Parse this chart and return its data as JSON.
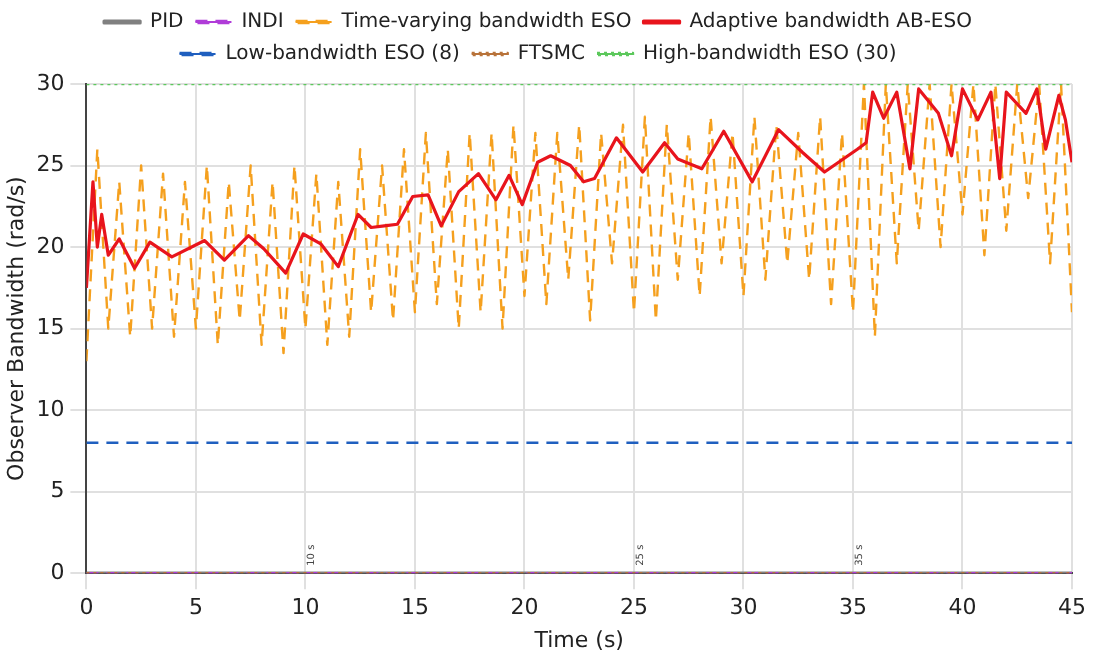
{
  "chart_data": {
    "type": "line",
    "xlabel": "Time (s)",
    "ylabel": "Observer Bandwidth (rad/s)",
    "xlim": [
      0,
      45
    ],
    "ylim": [
      0,
      30
    ],
    "xticks": [
      0,
      5,
      10,
      15,
      20,
      25,
      30,
      35,
      40,
      45
    ],
    "yticks": [
      0,
      5,
      10,
      15,
      20,
      25,
      30
    ],
    "grid": true,
    "legend": "top",
    "marker": "none",
    "annotations": [
      "10 s",
      "25 s",
      "35 s"
    ],
    "series": [
      {
        "name": "PID",
        "color": "#808080",
        "line_style": "solid",
        "x": [
          0,
          45
        ],
        "values": [
          0,
          0
        ]
      },
      {
        "name": "INDI",
        "color": "#b03cd8",
        "line_style": "dashed",
        "x": [
          0,
          45
        ],
        "values": [
          0,
          0
        ]
      },
      {
        "name": "Time-varying bandwidth ESO",
        "color": "#f5a01e",
        "line_style": "dashed",
        "x": [
          0,
          0.5,
          1,
          1.5,
          2,
          2.5,
          3,
          3.5,
          4,
          4.5,
          5,
          5.5,
          6,
          6.5,
          7,
          7.5,
          8,
          8.5,
          9,
          9.5,
          10,
          10.5,
          11,
          11.5,
          12,
          12.5,
          13,
          13.5,
          14,
          14.5,
          15,
          15.5,
          16,
          16.5,
          17,
          17.5,
          18,
          18.5,
          19,
          19.5,
          20,
          20.5,
          21,
          21.5,
          22,
          22.5,
          23,
          23.5,
          24,
          24.5,
          25,
          25.5,
          26,
          26.5,
          27,
          27.5,
          28,
          28.5,
          29,
          29.5,
          30,
          30.5,
          31,
          31.5,
          32,
          32.5,
          33,
          33.5,
          34,
          34.5,
          35,
          35.5,
          36,
          36.5,
          37,
          37.5,
          38,
          38.5,
          39,
          39.5,
          40,
          40.5,
          41,
          41.5,
          42,
          42.5,
          43,
          43.5,
          44,
          44.5,
          45
        ],
        "values": [
          13,
          26,
          15,
          24,
          14.5,
          25,
          15,
          24.5,
          14.5,
          24,
          15,
          25,
          14,
          24,
          15.5,
          25,
          14,
          24,
          13.5,
          25,
          15,
          24.5,
          14,
          24,
          14.5,
          26,
          16,
          25,
          15.5,
          26,
          16,
          27,
          16.5,
          26,
          15,
          27,
          16,
          27,
          15,
          27.5,
          17,
          27,
          16.5,
          27,
          18,
          27.5,
          15.5,
          27,
          19,
          27.5,
          16,
          28,
          15.5,
          27.5,
          18,
          27,
          17,
          28,
          19,
          27,
          17,
          28,
          18,
          27.5,
          19,
          27,
          18,
          28,
          16.5,
          27,
          16,
          30,
          14.5,
          30,
          19,
          30,
          21,
          30,
          20,
          30,
          22,
          30,
          19.5,
          30,
          21,
          30,
          23,
          30,
          19,
          30,
          16
        ]
      },
      {
        "name": "Adaptive bandwidth AB-ESO",
        "color": "#e8141c",
        "line_style": "solid",
        "x": [
          0,
          0.3,
          0.5,
          0.7,
          1,
          1.5,
          2.2,
          2.9,
          3.9,
          5.4,
          6.3,
          7.4,
          8.1,
          9.1,
          9.9,
          10.7,
          11.5,
          12.4,
          13,
          13.6,
          14.2,
          14.9,
          15.6,
          16.2,
          17,
          17.9,
          18.7,
          19.3,
          19.9,
          20.6,
          21.2,
          22.1,
          22.7,
          23.2,
          24.2,
          25.4,
          26.4,
          27,
          28.1,
          29.1,
          30.4,
          31.6,
          32.7,
          33.7,
          35.2,
          35.6,
          35.9,
          36.4,
          37,
          37.6,
          38,
          38.9,
          39.5,
          40,
          40.7,
          41.3,
          41.7,
          42,
          42.9,
          43.4,
          43.8,
          44.4,
          44.7,
          45
        ],
        "values": [
          17.5,
          24,
          20,
          22,
          19.5,
          20.5,
          18.7,
          20.3,
          19.4,
          20.4,
          19.2,
          20.7,
          19.9,
          18.4,
          20.8,
          20.2,
          18.8,
          22,
          21.2,
          21.3,
          21.4,
          23.1,
          23.2,
          21.3,
          23.4,
          24.5,
          22.9,
          24.4,
          22.6,
          25.2,
          25.6,
          25,
          24,
          24.2,
          26.7,
          24.6,
          26.4,
          25.4,
          24.8,
          27.1,
          24,
          27.2,
          25.8,
          24.6,
          26,
          26.4,
          29.5,
          27.9,
          29.5,
          24.8,
          29.7,
          28.2,
          25.6,
          29.7,
          27.8,
          29.5,
          24.2,
          29.5,
          28.2,
          29.7,
          26,
          29.3,
          27.8,
          25.2
        ]
      },
      {
        "name": "Low-bandwidth ESO (8)",
        "color": "#1f5fbf",
        "line_style": "dashed",
        "x": [
          0,
          45
        ],
        "values": [
          8,
          8
        ]
      },
      {
        "name": "FTSMC",
        "color": "#b8733a",
        "line_style": "dotted",
        "x": [
          0,
          45
        ],
        "values": [
          0,
          0
        ]
      },
      {
        "name": "High-bandwidth ESO (30)",
        "color": "#5cc85c",
        "line_style": "dotted",
        "x": [
          0,
          45
        ],
        "values": [
          30,
          30
        ]
      }
    ]
  }
}
